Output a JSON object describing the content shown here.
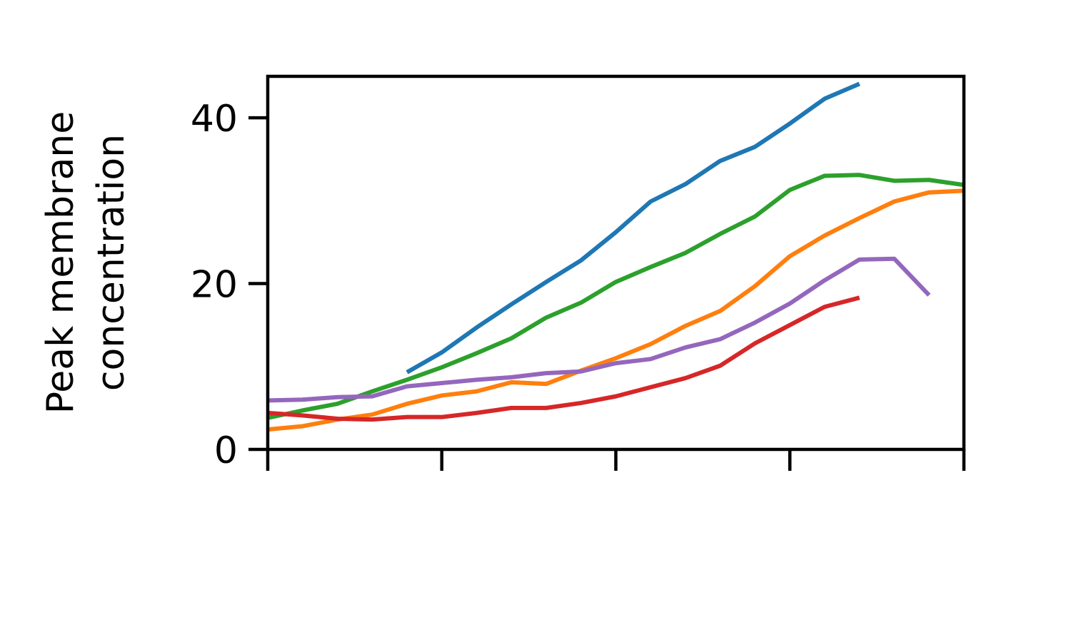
{
  "chart_data": {
    "type": "line",
    "ylabel": [
      "Peak membrane",
      "concentration"
    ],
    "xlabel": "",
    "title": "",
    "ylim": [
      0,
      45
    ],
    "xlim": [
      0,
      20
    ],
    "yticks": [
      0,
      20,
      40
    ],
    "xticks": [
      0,
      5,
      10,
      15,
      20
    ],
    "grid": false,
    "series": [
      {
        "color": "#1f77b4",
        "x": [
          4,
          5,
          6,
          7,
          8,
          9,
          10,
          11,
          12,
          13,
          14,
          15,
          16,
          17
        ],
        "values": [
          9.3,
          11.7,
          14.7,
          17.5,
          20.2,
          22.8,
          26.2,
          29.9,
          32.0,
          34.8,
          36.5,
          39.3,
          42.3,
          44.1
        ]
      },
      {
        "color": "#ff7f0e",
        "x": [
          0,
          1,
          2,
          3,
          4,
          5,
          6,
          7,
          8,
          9,
          10,
          11,
          12,
          13,
          14,
          15,
          16,
          17,
          18,
          19,
          20
        ],
        "values": [
          2.4,
          2.8,
          3.6,
          4.2,
          5.5,
          6.5,
          7.0,
          8.1,
          7.9,
          9.5,
          11.0,
          12.7,
          14.9,
          16.7,
          19.7,
          23.3,
          25.8,
          27.9,
          29.9,
          31.0,
          31.2
        ]
      },
      {
        "color": "#2ca02c",
        "x": [
          0,
          1,
          2,
          3,
          4,
          5,
          6,
          7,
          8,
          9,
          10,
          11,
          12,
          13,
          14,
          15,
          16,
          17,
          18,
          19,
          20
        ],
        "values": [
          3.8,
          4.7,
          5.5,
          7.0,
          8.4,
          9.9,
          11.6,
          13.4,
          15.9,
          17.7,
          20.2,
          22.0,
          23.7,
          26.0,
          28.1,
          31.3,
          33.0,
          33.1,
          32.4,
          32.5,
          31.9
        ]
      },
      {
        "color": "#d62728",
        "x": [
          0,
          1,
          2,
          3,
          4,
          5,
          6,
          7,
          8,
          9,
          10,
          11,
          12,
          13,
          14,
          15,
          16,
          17
        ],
        "values": [
          4.4,
          4.1,
          3.7,
          3.6,
          3.9,
          3.9,
          4.4,
          5.0,
          5.0,
          5.6,
          6.4,
          7.5,
          8.6,
          10.1,
          12.8,
          15.0,
          17.2,
          18.3
        ]
      },
      {
        "color": "#9467bd",
        "x": [
          0,
          1,
          2,
          3,
          4,
          5,
          6,
          7,
          8,
          9,
          10,
          11,
          12,
          13,
          14,
          15,
          16,
          17,
          18,
          19
        ],
        "values": [
          5.9,
          6.0,
          6.3,
          6.4,
          7.6,
          8.0,
          8.4,
          8.7,
          9.2,
          9.4,
          10.4,
          10.9,
          12.3,
          13.3,
          15.3,
          17.6,
          20.4,
          22.9,
          23.0,
          18.6
        ]
      }
    ]
  }
}
